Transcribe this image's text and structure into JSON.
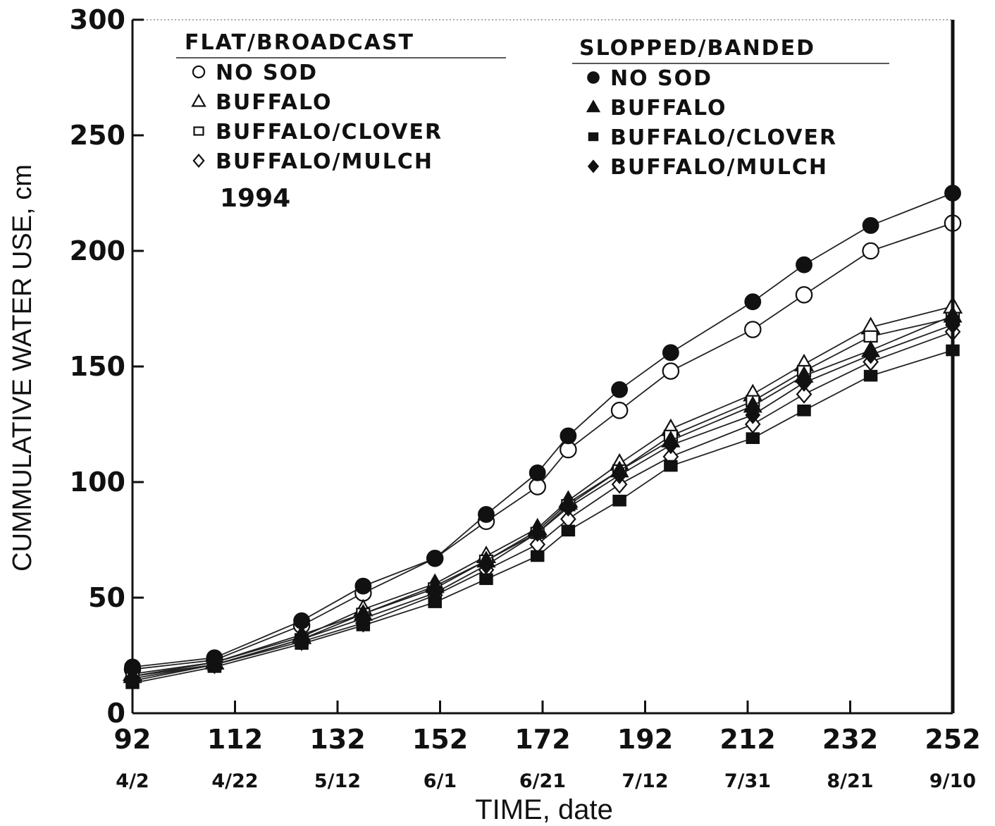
{
  "chart_data": {
    "type": "line",
    "title": "",
    "year_label": "1994",
    "xlabel": "TIME, date",
    "ylabel": "CUMMULATIVE WATER USE, cm",
    "xlim": [
      92,
      252
    ],
    "ylim": [
      0,
      300
    ],
    "x_ticks": [
      92,
      112,
      132,
      152,
      172,
      192,
      212,
      232,
      252
    ],
    "x_tick_labels": [
      "92",
      "112",
      "132",
      "152",
      "172",
      "192",
      "212",
      "232",
      "252"
    ],
    "x_date_labels": [
      "4/2",
      "4/22",
      "5/12",
      "6/1",
      "6/21",
      "7/12",
      "7/31",
      "8/21",
      "9/10"
    ],
    "y_ticks": [
      0,
      50,
      100,
      150,
      200,
      250,
      300
    ],
    "y_tick_labels": [
      "0",
      "50",
      "100",
      "150",
      "200",
      "250",
      "300"
    ],
    "grid": false,
    "legend_groups": [
      {
        "title": "FLAT/BROADCAST",
        "placement": "top-left"
      },
      {
        "title": "SLOPPED/BANDED",
        "placement": "top-right"
      }
    ],
    "x": [
      92,
      108,
      125,
      137,
      151,
      161,
      171,
      177,
      187,
      197,
      213,
      223,
      236,
      252
    ],
    "series": [
      {
        "name": "NO SOD",
        "group": 0,
        "marker": "circle",
        "filled": false,
        "values": [
          19,
          23,
          38,
          52,
          67,
          83,
          98,
          114,
          131,
          148,
          166,
          181,
          200,
          212
        ]
      },
      {
        "name": "BUFFALO",
        "group": 0,
        "marker": "triangle",
        "filled": false,
        "values": [
          17,
          22,
          33,
          45,
          56,
          68,
          80,
          92,
          108,
          123,
          138,
          151,
          167,
          176
        ]
      },
      {
        "name": "BUFFALO/CLOVER",
        "group": 0,
        "marker": "square",
        "filled": false,
        "values": [
          16,
          21,
          32,
          43,
          54,
          66,
          78,
          90,
          105,
          120,
          135,
          148,
          163,
          171
        ]
      },
      {
        "name": "BUFFALO/MULCH",
        "group": 0,
        "marker": "diamond",
        "filled": false,
        "values": [
          15,
          21,
          31,
          39,
          51,
          62,
          73,
          84,
          99,
          111,
          125,
          138,
          152,
          165
        ]
      },
      {
        "name": "NO SOD",
        "group": 1,
        "marker": "circle",
        "filled": true,
        "values": [
          20,
          24,
          40,
          55,
          67,
          86,
          104,
          120,
          140,
          156,
          178,
          194,
          211,
          225
        ]
      },
      {
        "name": "BUFFALO",
        "group": 1,
        "marker": "triangle",
        "filled": true,
        "values": [
          16,
          22,
          34,
          43,
          55,
          66,
          79,
          91,
          105,
          118,
          133,
          146,
          157,
          172
        ]
      },
      {
        "name": "BUFFALO/CLOVER",
        "group": 1,
        "marker": "square",
        "filled": true,
        "values": [
          13,
          20,
          30,
          38,
          48,
          58,
          68,
          79,
          92,
          107,
          119,
          131,
          146,
          157
        ]
      },
      {
        "name": "BUFFALO/MULCH",
        "group": 1,
        "marker": "diamond",
        "filled": true,
        "values": [
          14,
          21,
          32,
          41,
          52,
          64,
          78,
          89,
          103,
          116,
          129,
          143,
          155,
          168
        ]
      }
    ]
  }
}
